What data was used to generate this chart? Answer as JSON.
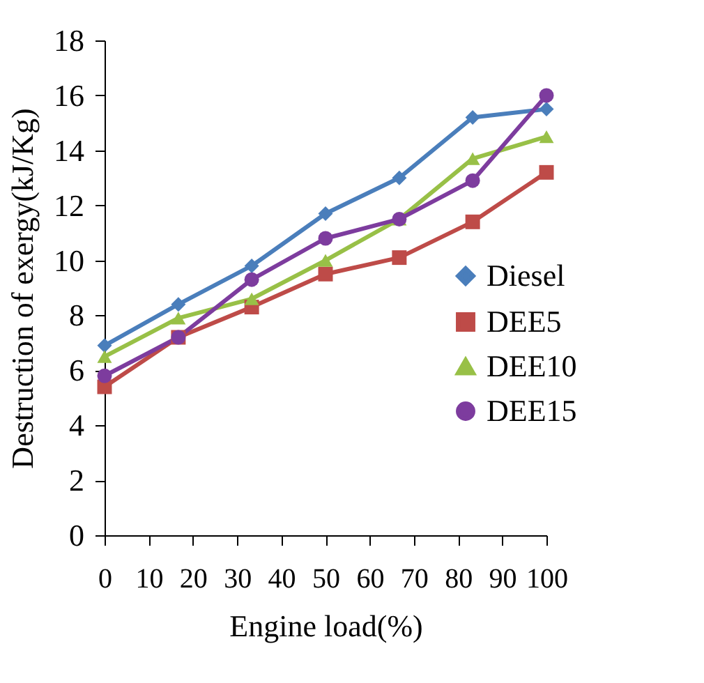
{
  "chart_data": {
    "type": "line",
    "xlabel": "Engine load(%)",
    "ylabel": "Destruction of exergy(kJ/Kg)",
    "x": [
      0,
      16.7,
      33.3,
      50,
      66.7,
      83.3,
      100
    ],
    "xlim": [
      0,
      100
    ],
    "xticks": [
      0,
      10,
      20,
      30,
      40,
      50,
      60,
      70,
      80,
      90,
      100
    ],
    "ylim": [
      0,
      18
    ],
    "yticks": [
      0,
      2,
      4,
      6,
      8,
      10,
      12,
      14,
      16,
      18
    ],
    "grid": false,
    "legend": "right",
    "line_style": "solid",
    "series": [
      {
        "name": "Diesel",
        "color": "#4a7ebb",
        "marker": "diamond",
        "values": [
          6.9,
          8.4,
          9.8,
          11.7,
          13.0,
          15.2,
          15.5
        ]
      },
      {
        "name": "DEE5",
        "color": "#be4b48",
        "marker": "square",
        "values": [
          5.4,
          7.2,
          8.3,
          9.5,
          10.1,
          11.4,
          13.2
        ]
      },
      {
        "name": "DEE10",
        "color": "#98c047",
        "marker": "triangle",
        "values": [
          6.5,
          7.9,
          8.6,
          10.0,
          11.5,
          13.7,
          14.5
        ]
      },
      {
        "name": "DEE15",
        "color": "#7d3c9e",
        "marker": "circle",
        "values": [
          5.8,
          7.2,
          9.3,
          10.8,
          11.5,
          12.9,
          16.0
        ]
      }
    ]
  }
}
